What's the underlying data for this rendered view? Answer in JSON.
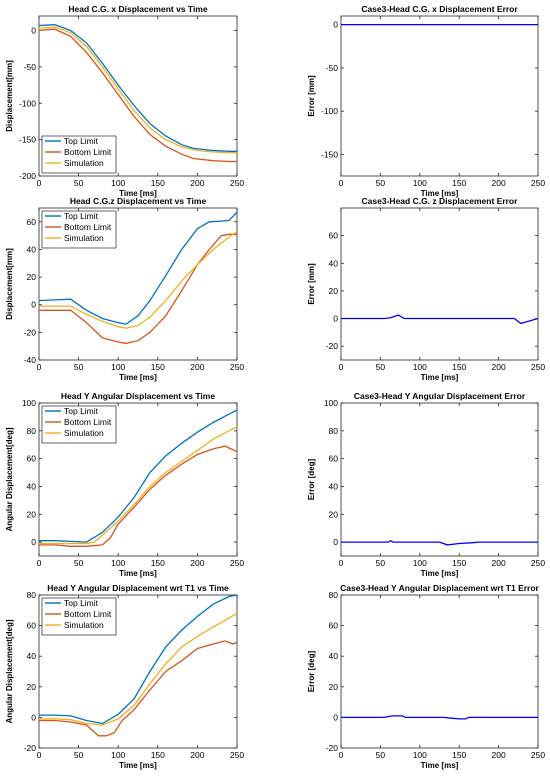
{
  "colors": {
    "top": "#0072BD",
    "bottom": "#D95319",
    "sim": "#EDB120",
    "error": "#0000FF"
  },
  "chart_data": [
    {
      "type": "line",
      "title": "Head C.G. x Displacement vs Time",
      "xlabel": "Time [ms]",
      "ylabel": "Displacement[mm]",
      "xlim": [
        0,
        250
      ],
      "ylim": [
        -200,
        20
      ],
      "xticks": [
        0,
        50,
        100,
        150,
        200,
        250
      ],
      "yticks": [
        0,
        -50,
        -100,
        -150,
        -200
      ],
      "legend": "bottom-left",
      "series": [
        {
          "name": "Top Limit",
          "color": "top",
          "x": [
            0,
            20,
            40,
            60,
            80,
            100,
            120,
            140,
            160,
            180,
            195,
            220,
            240,
            250
          ],
          "y": [
            7,
            8,
            0,
            -17,
            -45,
            -75,
            -103,
            -128,
            -145,
            -157,
            -162,
            -165,
            -166,
            -166
          ]
        },
        {
          "name": "Bottom Limit",
          "color": "bottom",
          "x": [
            0,
            20,
            40,
            60,
            80,
            100,
            120,
            140,
            160,
            180,
            195,
            220,
            240,
            250
          ],
          "y": [
            0,
            2,
            -8,
            -30,
            -58,
            -88,
            -118,
            -143,
            -159,
            -170,
            -176,
            -179,
            -180,
            -180
          ]
        },
        {
          "name": "Simulation",
          "color": "sim",
          "x": [
            0,
            20,
            40,
            60,
            80,
            100,
            120,
            140,
            160,
            180,
            200,
            220,
            240,
            250
          ],
          "y": [
            3,
            5,
            -3,
            -22,
            -50,
            -80,
            -110,
            -134,
            -150,
            -160,
            -165,
            -167,
            -168,
            -168
          ]
        }
      ]
    },
    {
      "type": "line",
      "title": "Case3-Head C.G. x Displacement Error",
      "xlabel": "Time [ms]",
      "ylabel": "Error [mm]",
      "xlim": [
        0,
        250
      ],
      "ylim": [
        -175,
        10
      ],
      "xticks": [
        0,
        50,
        100,
        150,
        200,
        250
      ],
      "yticks": [
        0,
        -50,
        -100,
        -150
      ],
      "series": [
        {
          "color": "error",
          "x": [
            0,
            250
          ],
          "y": [
            0,
            0
          ]
        }
      ]
    },
    {
      "type": "line",
      "title": "Head C.G.z Displacement vs Time",
      "xlabel": "Time [ms]",
      "ylabel": "Displacement[mm]",
      "xlim": [
        0,
        250
      ],
      "ylim": [
        -40,
        70
      ],
      "xticks": [
        0,
        50,
        100,
        150,
        200,
        250
      ],
      "yticks": [
        -40,
        -20,
        0,
        20,
        40,
        60
      ],
      "legend": "top-left",
      "series": [
        {
          "name": "Top Limit",
          "color": "top",
          "x": [
            0,
            20,
            40,
            60,
            80,
            100,
            110,
            125,
            140,
            160,
            180,
            200,
            215,
            230,
            240,
            250
          ],
          "y": [
            3,
            3.5,
            4,
            -4,
            -10,
            -13,
            -14,
            -8,
            3,
            21,
            40,
            55,
            60,
            60.5,
            61,
            67
          ]
        },
        {
          "name": "Bottom Limit",
          "color": "bottom",
          "x": [
            0,
            20,
            40,
            60,
            80,
            100,
            110,
            125,
            140,
            160,
            180,
            200,
            215,
            230,
            240,
            250
          ],
          "y": [
            -4,
            -4,
            -4,
            -13,
            -24,
            -27,
            -28,
            -26,
            -20,
            -8,
            10,
            29,
            40,
            50,
            51,
            51
          ]
        },
        {
          "name": "Simulation",
          "color": "sim",
          "x": [
            0,
            20,
            40,
            60,
            80,
            100,
            110,
            125,
            140,
            160,
            180,
            200,
            220,
            240,
            250
          ],
          "y": [
            -1,
            -1,
            -1,
            -7,
            -12,
            -16,
            -17,
            -15,
            -9,
            3,
            17,
            29,
            40,
            49,
            53
          ]
        }
      ]
    },
    {
      "type": "line",
      "title": "Case3-Head C.G. z Displacement Error",
      "xlabel": "Time [ms]",
      "ylabel": "Error [mm]",
      "xlim": [
        0,
        250
      ],
      "ylim": [
        -30,
        80
      ],
      "xticks": [
        0,
        50,
        100,
        150,
        200,
        250
      ],
      "yticks": [
        -20,
        0,
        20,
        40,
        60
      ],
      "series": [
        {
          "color": "error",
          "x": [
            0,
            55,
            62,
            73,
            80,
            90,
            220,
            228,
            238,
            250
          ],
          "y": [
            0,
            0,
            0.5,
            2.5,
            0,
            0,
            0,
            -3.5,
            -2,
            0
          ]
        }
      ]
    },
    {
      "type": "line",
      "title": "Head Y Angular Displacement vs Time",
      "xlabel": "Time [ms]",
      "ylabel": "Angular Displacement[deg]",
      "xlim": [
        0,
        250
      ],
      "ylim": [
        -10,
        100
      ],
      "xticks": [
        0,
        50,
        100,
        150,
        200,
        250
      ],
      "yticks": [
        0,
        20,
        40,
        60,
        80,
        100
      ],
      "legend": "top-left",
      "series": [
        {
          "name": "Top Limit",
          "color": "top",
          "x": [
            0,
            20,
            40,
            60,
            80,
            100,
            120,
            140,
            160,
            180,
            200,
            220,
            240,
            250
          ],
          "y": [
            1,
            1,
            0.5,
            0,
            7,
            18,
            32,
            50,
            62,
            71,
            79,
            86,
            92,
            95
          ]
        },
        {
          "name": "Bottom Limit",
          "color": "bottom",
          "x": [
            0,
            20,
            40,
            60,
            80,
            90,
            100,
            120,
            140,
            160,
            180,
            200,
            220,
            235,
            250
          ],
          "y": [
            -2,
            -2,
            -3,
            -3,
            -2,
            3,
            13,
            25,
            38,
            48,
            56,
            63,
            67,
            69,
            65
          ]
        },
        {
          "name": "Simulation",
          "color": "sim",
          "x": [
            0,
            20,
            40,
            60,
            70,
            80,
            100,
            120,
            140,
            160,
            180,
            200,
            220,
            240,
            250
          ],
          "y": [
            -1,
            -1,
            -1,
            -1,
            0,
            5,
            15,
            27,
            40,
            50,
            58,
            66,
            74,
            80,
            83
          ]
        }
      ]
    },
    {
      "type": "line",
      "title": "Case3-Head Y Angular Displacement Error",
      "xlabel": "Time [ms]",
      "ylabel": "Error [deg]",
      "xlim": [
        0,
        250
      ],
      "ylim": [
        -10,
        100
      ],
      "xticks": [
        0,
        50,
        100,
        150,
        200,
        250
      ],
      "yticks": [
        0,
        20,
        40,
        60,
        80,
        100
      ],
      "series": [
        {
          "color": "error",
          "x": [
            0,
            60,
            63,
            66,
            70,
            125,
            135,
            150,
            165,
            175,
            250
          ],
          "y": [
            0,
            0,
            1,
            0,
            0,
            0,
            -2,
            -1,
            -0.5,
            0,
            0
          ]
        }
      ]
    },
    {
      "type": "line",
      "title": "Head Y Angular Displacement wrt T1 vs Time",
      "xlabel": "Time [ms]",
      "ylabel": "Angular Displacement[deg]",
      "xlim": [
        0,
        250
      ],
      "ylim": [
        -20,
        80
      ],
      "xticks": [
        0,
        50,
        100,
        150,
        200,
        250
      ],
      "yticks": [
        -20,
        0,
        20,
        40,
        60,
        80
      ],
      "legend": "top-left",
      "series": [
        {
          "name": "Top Limit",
          "color": "top",
          "x": [
            0,
            20,
            40,
            60,
            80,
            100,
            120,
            140,
            160,
            180,
            200,
            220,
            240,
            250
          ],
          "y": [
            1.5,
            1.5,
            1,
            -2,
            -4,
            2,
            12,
            30,
            46,
            57,
            66,
            74,
            79,
            80
          ]
        },
        {
          "name": "Bottom Limit",
          "color": "bottom",
          "x": [
            0,
            20,
            40,
            60,
            75,
            85,
            95,
            105,
            120,
            140,
            160,
            180,
            200,
            220,
            235,
            245,
            250
          ],
          "y": [
            -2,
            -2,
            -3,
            -5,
            -12,
            -12,
            -10,
            -2,
            5,
            18,
            30,
            37,
            45,
            48,
            50,
            48,
            49
          ]
        },
        {
          "name": "Simulation",
          "color": "sim",
          "x": [
            0,
            20,
            40,
            60,
            80,
            100,
            120,
            140,
            160,
            180,
            200,
            220,
            240,
            250
          ],
          "y": [
            -1,
            -1,
            -1.5,
            -4,
            -5,
            -1,
            8,
            22,
            35,
            46,
            53,
            59,
            65,
            68
          ]
        }
      ]
    },
    {
      "type": "line",
      "title": "Case3-Head Y Angular Displacement wrt T1 Error",
      "xlabel": "Time [ms]",
      "ylabel": "Error [deg]",
      "xlim": [
        0,
        250
      ],
      "ylim": [
        -20,
        80
      ],
      "xticks": [
        0,
        50,
        100,
        150,
        200,
        250
      ],
      "yticks": [
        -20,
        0,
        20,
        40,
        60,
        80
      ],
      "series": [
        {
          "color": "error",
          "x": [
            0,
            55,
            65,
            78,
            82,
            130,
            140,
            150,
            158,
            162,
            250
          ],
          "y": [
            0,
            0,
            1,
            1,
            0,
            0,
            -0.5,
            -1,
            -1,
            0,
            0
          ]
        }
      ]
    }
  ]
}
